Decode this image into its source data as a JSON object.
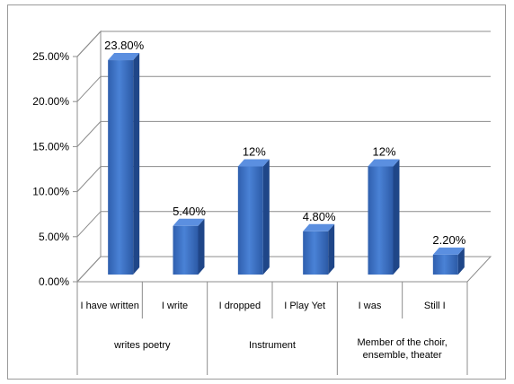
{
  "chart_data": {
    "type": "bar",
    "categories": [
      "I have written",
      "I write",
      "I dropped",
      "I Play Yet",
      "I was",
      "Still I"
    ],
    "values": [
      23.8,
      5.4,
      12,
      4.8,
      12,
      2.2
    ],
    "data_labels": [
      "23.80%",
      "5.40%",
      "12%",
      "4.80%",
      "12%",
      "2.20%"
    ],
    "groups": [
      {
        "label": [
          "writes poetry"
        ],
        "span": [
          0,
          1
        ]
      },
      {
        "label": [
          "Instrument"
        ],
        "span": [
          2,
          3
        ]
      },
      {
        "label": [
          "Member of the choir,",
          "ensemble, theater"
        ],
        "span": [
          4,
          5
        ]
      }
    ],
    "y_ticks": [
      "0.00%",
      "5.00%",
      "10.00%",
      "15.00%",
      "20.00%",
      "25.00%"
    ],
    "ylim": [
      0,
      25
    ],
    "grid": true,
    "legend": "none",
    "bar_color": "#3a6fc2",
    "title": "",
    "xlabel": "",
    "ylabel": ""
  }
}
